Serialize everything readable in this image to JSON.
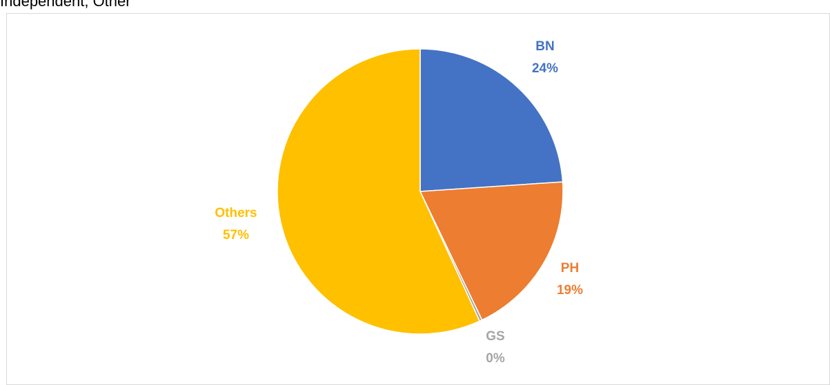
{
  "caption": "Independent, Other",
  "chart_data": {
    "type": "pie",
    "title": "",
    "slices": [
      {
        "label": "BN",
        "percent_label": "24%",
        "value": 24,
        "color": "#4472C4"
      },
      {
        "label": "PH",
        "percent_label": "19%",
        "value": 19,
        "color": "#ED7D31"
      },
      {
        "label": "GS",
        "percent_label": "0%",
        "value": 0.3,
        "color": "#A5A5A5"
      },
      {
        "label": "Others",
        "percent_label": "57%",
        "value": 57,
        "color": "#FFC000"
      }
    ],
    "start_angle_deg": 0,
    "direction": "clockwise",
    "legend": "none",
    "data_labels": "outside"
  }
}
